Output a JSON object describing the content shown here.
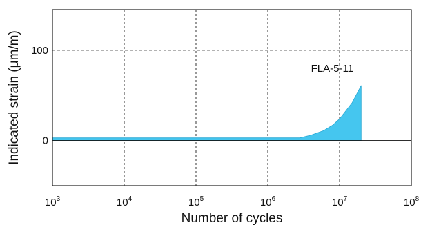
{
  "chart_data": {
    "type": "area",
    "title": "",
    "xlabel": "Number of cycles",
    "ylabel": "Indicated strain (μm/m)",
    "x_scale": "log",
    "xlim": [
      1000,
      100000000
    ],
    "ylim": [
      -50,
      145
    ],
    "x_ticks": [
      {
        "base": "10",
        "exp": "3",
        "value": 1000
      },
      {
        "base": "10",
        "exp": "4",
        "value": 10000
      },
      {
        "base": "10",
        "exp": "5",
        "value": 100000
      },
      {
        "base": "10",
        "exp": "6",
        "value": 1000000
      },
      {
        "base": "10",
        "exp": "7",
        "value": 10000000
      },
      {
        "base": "10",
        "exp": "8",
        "value": 100000000
      }
    ],
    "y_ticks": [
      {
        "label": "0",
        "value": 0
      },
      {
        "label": "100",
        "value": 100
      }
    ],
    "grid": {
      "vertical": true,
      "horizontal_at": [
        100
      ],
      "style": "dashed"
    },
    "reference_line": 0,
    "series": [
      {
        "name": "FLA-5-11",
        "color": "#45c6ef",
        "x": [
          1000,
          10000,
          100000,
          1000000,
          2800000,
          4000000,
          6000000,
          8000000,
          10000000,
          12000000,
          15000000,
          20000000,
          20000000
        ],
        "upper": [
          3,
          3,
          3,
          3,
          3,
          6,
          11,
          17,
          24,
          32,
          42,
          61,
          0
        ],
        "lower": [
          0,
          0,
          0,
          0,
          0,
          0,
          0,
          0,
          0,
          0,
          0,
          0,
          0
        ]
      }
    ],
    "annotations": [
      {
        "text": "FLA-5-11",
        "x": 4000000,
        "y": 80
      }
    ]
  }
}
